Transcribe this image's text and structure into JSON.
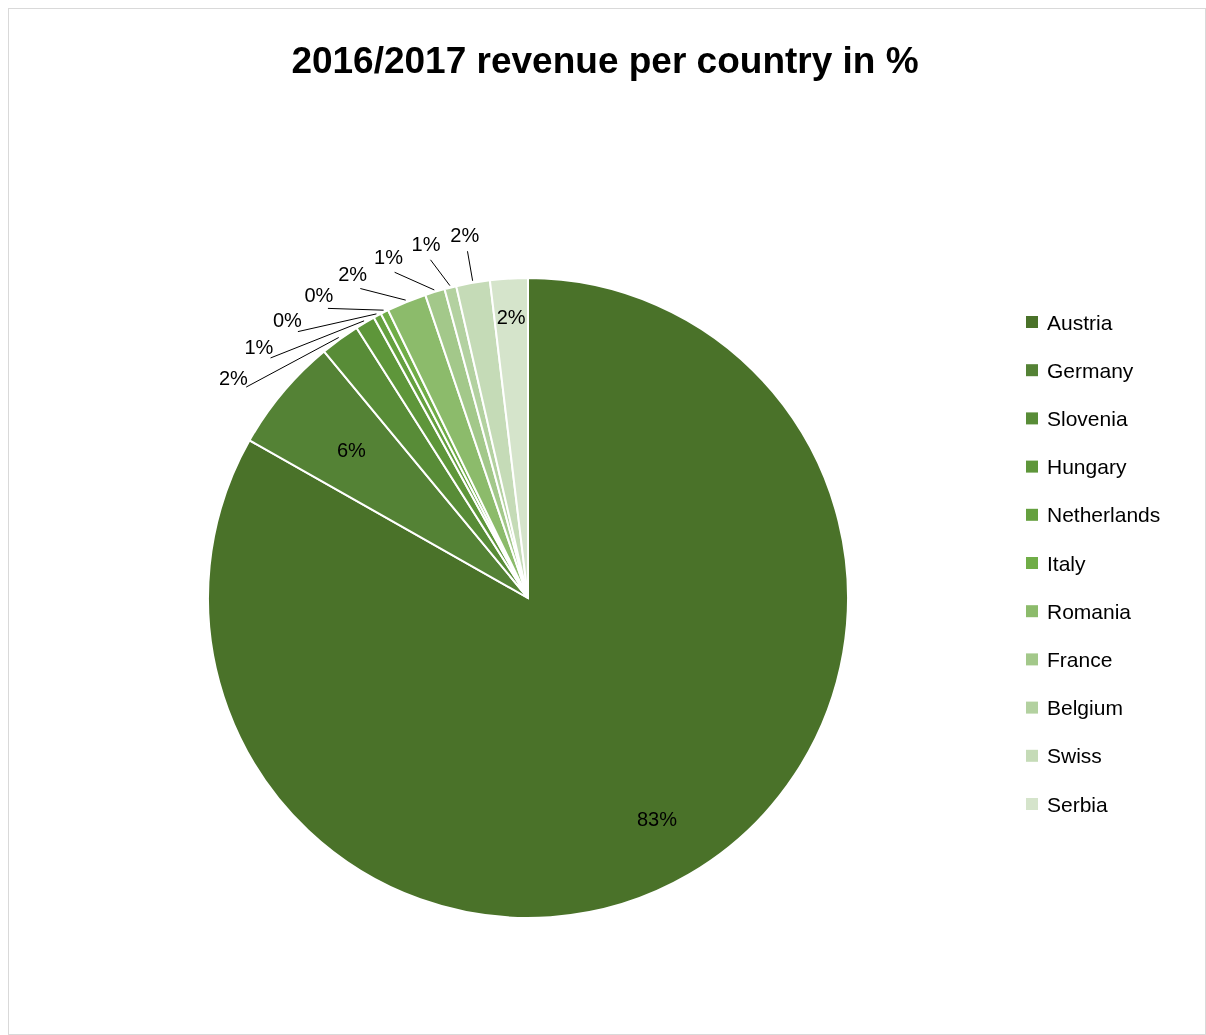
{
  "chart_data": {
    "type": "pie",
    "title": "2016/2017 revenue per country in %",
    "categories": [
      "Austria",
      "Germany",
      "Slovenia",
      "Hungary",
      "Netherlands",
      "Italy",
      "Romania",
      "France",
      "Belgium",
      "Swiss",
      "Serbia"
    ],
    "values": [
      83.2,
      5.8,
      2.0,
      1.0,
      0.4,
      0.4,
      2.0,
      1.0,
      0.6,
      1.7,
      1.9
    ],
    "value_labels": [
      "83%",
      "6%",
      "2%",
      "1%",
      "0%",
      "0%",
      "2%",
      "1%",
      "1%",
      "2%",
      "2%"
    ],
    "colors": [
      "#4a7229",
      "#548235",
      "#588c37",
      "#5e963a",
      "#65a03f",
      "#70ad47",
      "#8cbb6b",
      "#a3c88a",
      "#b3d1a0",
      "#c5dbb7",
      "#d5e4cb"
    ],
    "legend": "right"
  }
}
